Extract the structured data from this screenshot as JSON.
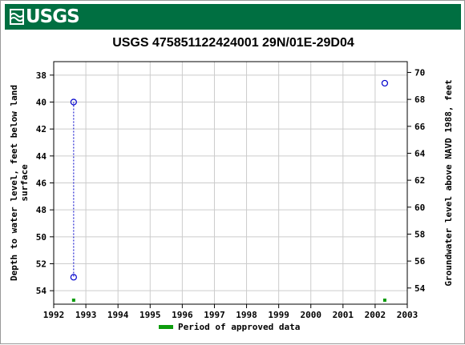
{
  "header": {
    "logo_text": "USGS",
    "banner_color": "#006f41"
  },
  "chart_data": {
    "type": "scatter",
    "title": "USGS 475851122424001 29N/01E-29D04",
    "xlabel": "",
    "ylabel_left": "Depth to water level, feet below land surface",
    "ylabel_right": "Groundwater level above NAVD 1988, feet",
    "xlim": [
      1992,
      2003
    ],
    "ylim_left": [
      55,
      37
    ],
    "ylim_right": [
      52.8,
      70.8
    ],
    "x_ticks": [
      "1992",
      "1993",
      "1994",
      "1995",
      "1996",
      "1997",
      "1998",
      "1999",
      "2000",
      "2001",
      "2002",
      "2003"
    ],
    "y_left_ticks": [
      "38",
      "40",
      "42",
      "44",
      "46",
      "48",
      "50",
      "52",
      "54"
    ],
    "y_right_ticks": [
      "54",
      "56",
      "58",
      "60",
      "62",
      "64",
      "66",
      "68",
      "70"
    ],
    "grid": true,
    "series": [
      {
        "points": [
          {
            "x": 1992.62,
            "y": 40.0
          },
          {
            "x": 1992.62,
            "y": 53.0
          },
          {
            "x": 2002.3,
            "y": 38.6
          }
        ],
        "connected_segments": [
          [
            0,
            1
          ]
        ],
        "color": "#0000cc"
      }
    ],
    "approved_periods": [
      {
        "x": 1992.62
      },
      {
        "x": 2002.3
      }
    ],
    "approved_color": "#0d9c0d",
    "legend": {
      "label": "Period of approved data",
      "placement": "bottom-center"
    }
  }
}
